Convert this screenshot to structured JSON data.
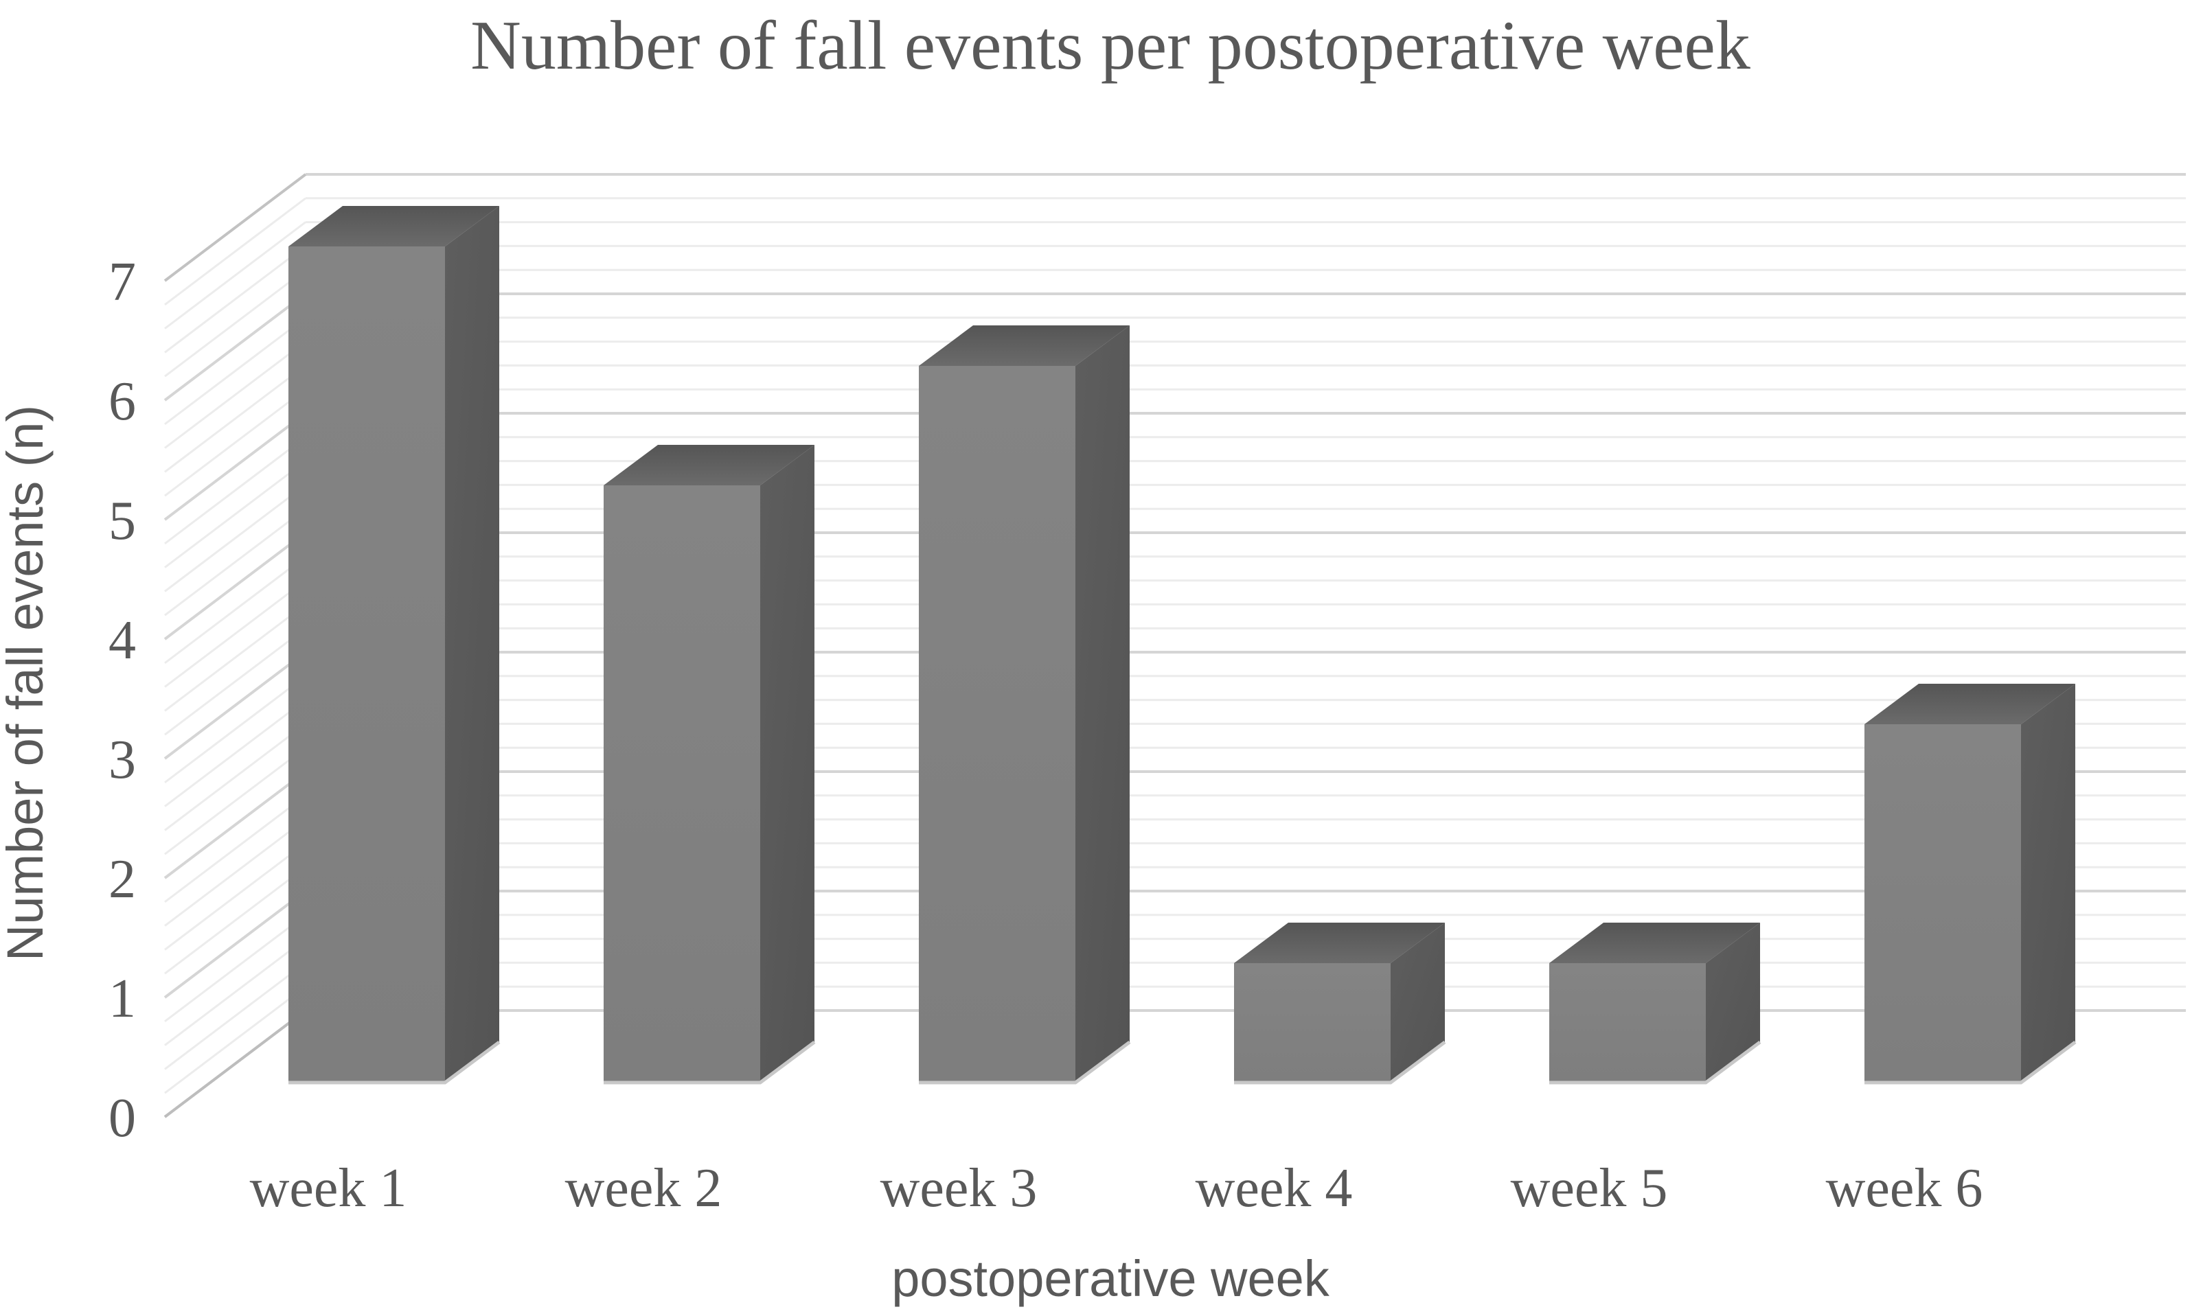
{
  "figure": {
    "title": "Number of fall events per postoperative week"
  },
  "chart_data": {
    "type": "bar",
    "variant": "3d-column",
    "title": "Number of fall events per postoperative week",
    "categories": [
      "week 1",
      "week 2",
      "week 3",
      "week 4",
      "week 5",
      "week 6"
    ],
    "values": [
      7,
      5,
      6,
      1,
      1,
      3
    ],
    "series": [
      {
        "name": "Number of fall events",
        "values": [
          7,
          5,
          6,
          1,
          1,
          3
        ]
      }
    ],
    "xlabel": "postoperative week",
    "ylabel": "Number of fall events (n)",
    "ylim": [
      0,
      7
    ],
    "yticks": [
      0,
      1,
      2,
      3,
      4,
      5,
      6,
      7
    ],
    "minor_gridline_step": 0.2,
    "grid": true,
    "legend": false,
    "colors": {
      "background": "#ffffff",
      "text": "#595959",
      "bar_front": "#7e7e7e",
      "bar_front_light": "#848484",
      "bar_side": "#545454",
      "bar_side_light": "#5e5e5e",
      "bar_top": "#555555",
      "bar_top_light": "#6b6b6b",
      "bar_bottom_edge": "#c8c8c8",
      "grid_minor": "#ececec",
      "grid_major": "#d5d5d5",
      "wall_edge": "#c2c2c2",
      "floor_edge": "#bdbdbd"
    }
  }
}
